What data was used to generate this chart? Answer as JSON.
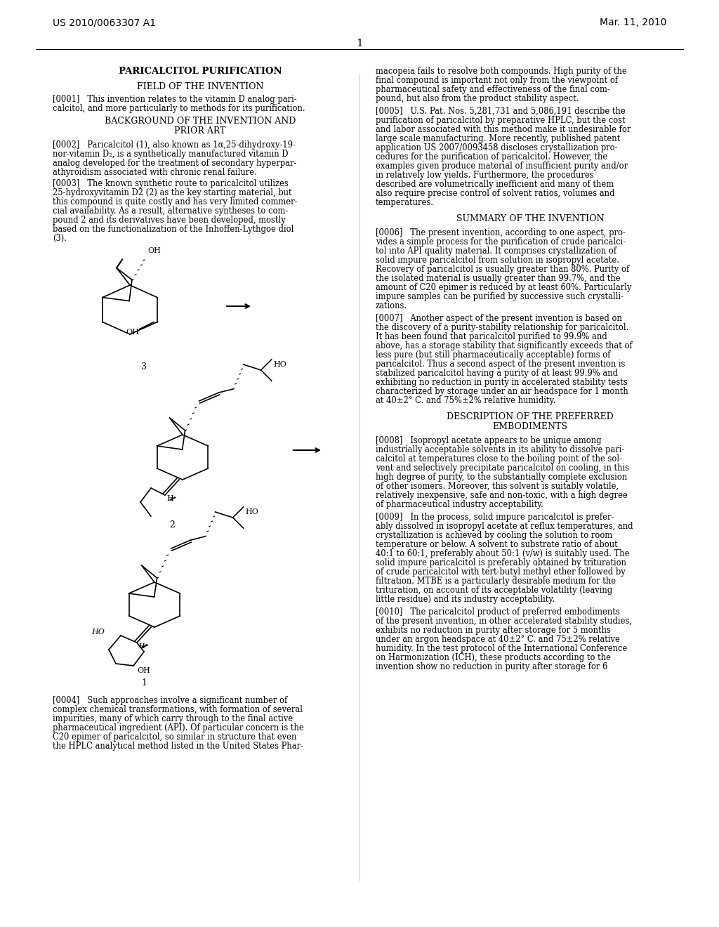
{
  "page_number": "1",
  "patent_number": "US 2010/0063307 A1",
  "patent_date": "Mar. 11, 2010",
  "bg_color": "#ffffff",
  "text_color": "#000000",
  "title_bold": "PARICALCITOL PURIFICATION",
  "section1_header": "FIELD OF THE INVENTION",
  "section1_para": "[0001] This invention relates to the vitamin D analog pari-\ncalcitol, and more particularly to methods for its purification.",
  "section2_header": "BACKGROUND OF THE INVENTION AND\nPRIOR ART",
  "section2_para1": "[0002] Paricalcitol (1), also known as 1α,25-dihydroxy-19-\nnor-vitamin D₂, is a synthetically manufactured vitamin D\nanalog developed for the treatment of secondary hyperpar-\nathyroidism associated with chronic renal failure.",
  "section2_para2": "[0003] The known synthetic route to paricalcitol utilizes\n25-hydroxyvitamin D2 (2) as the key starting material, but\nthis compound is quite costly and has very limited commer-\ncial availability. As a result, alternative syntheses to com-\npound 2 and its derivatives have been developed, mostly\nbased on the functionalization of the Inhoffen-Lythgoe diol\n(3).",
  "section3_para": "[0004] Such approaches involve a significant number of\ncomplex chemical transformations, with formation of several\nimpurities, many of which carry through to the final active\npharmaceutical ingredient (API). Of particular concern is the\nC20 epimer of paricalcitol, so similar in structure that even\nthe HPLC analytical method listed in the United States Phar-",
  "right_col_para1": "macopeia fails to resolve both compounds. High purity of the\nfinal compound is important not only from the viewpoint of\npharmaceutical safety and effectiveness of the final com-\npound, but also from the product stability aspect.",
  "right_col_ref": "[0005] U.S. Pat. Nos. 5,281,731 and 5,086,191 describe the\npurification of paricalcitol by preparative HPLC, but the cost\nand labor associated with this method make it undesirable for\nlarge scale manufacturing. More recently, published patent\napplication US 2007/0093458 discloses crystallization pro-\ncedures for the purification of paricalcitol. However, the\nexamples given produce material of insufficient purity and/or\nin relatively low yields. Furthermore, the procedures\ndescribed are volumetrically inefficient and many of them\nalso require precise control of solvent ratios, volumes and\ntemperatures.",
  "summary_header": "SUMMARY OF THE INVENTION",
  "summary_para1": "[0006] The present invention, according to one aspect, pro-\nvides a simple process for the purification of crude paricalci-\ntol into API quality material. It comprises crystallization of\nsolid impure paricalcitol from solution in isopropyl acetate.\nRecovery of paricalcitol is usually greater than 80%. Purity of\nthe isolated material is usually greater than 99.7%, and the\namount of C20 epimer is reduced by at least 60%. Particularly\nimpure samples can be purified by successive such crystalli-\nzations.",
  "summary_para2": "[0007] Another aspect of the present invention is based on\nthe discovery of a purity-stability relationship for paricalcitol.\nIt has been found that paricalcitol purified to 99.9% and\nabove, has a storage stability that significantly exceeds that of\nless pure (but still pharmaceutically acceptable) forms of\nparicalcitol. Thus a second aspect of the present invention is\nstabilized paricalcitol having a purity of at least 99.9% and\nexhibiting no reduction in purity in accelerated stability tests\ncharacterized by storage under an air headspace for 1 month\nat 40±2° C. and 75%±2% relative humidity.",
  "description_header": "DESCRIPTION OF THE PREFERRED\nEMBODIMENTS",
  "description_para1": "[0008] Isopropyl acetate appears to be unique among\nindustrially acceptable solvents in its ability to dissolve pari-\ncalcitol at temperatures close to the boiling point of the sol-\nvent and selectively precipitate paricalcitol on cooling, in this\nhigh degree of purity, to the substantially complete exclusion\nof other isomers. Moreover, this solvent is suitably volatile,\nrelatively inexpensive, safe and non-toxic, with a high degree\nof pharmaceutical industry acceptability.",
  "description_para2": "[0009] In the process, solid impure paricalcitol is prefer-\nably dissolved in isopropyl acetate at reflux temperatures, and\ncrystallization is achieved by cooling the solution to room\ntemperature or below. A solvent to substrate ratio of about\n40:1 to 60:1, preferably about 50:1 (v/w) is suitably used. The\nsolid impure paricalcitol is preferably obtained by trituration\nof crude paricalcitol with tert-butyl methyl ether followed by\nfiltration. MTBE is a particularly desirable medium for the\ntrituration, on account of its acceptable volatility (leaving\nlittle residue) and its industry acceptability.",
  "description_para3": "[0010] The paricalcitol product of preferred embodiments\nof the present invention, in other accelerated stability studies,\nexhibits no reduction in purity after storage for 5 months\nunder an argon headspace at 40±2° C. and 75±2% relative\nhumidity. In the test protocol of the International Conference\non Harmonization (ICH), these products according to the\ninvention show no reduction in purity after storage for 6"
}
